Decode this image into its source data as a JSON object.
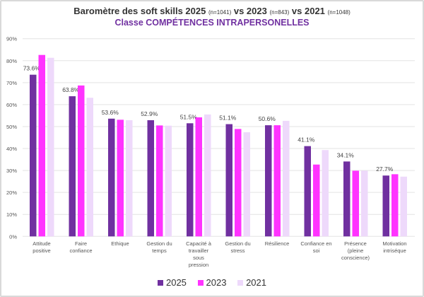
{
  "chart_data": {
    "type": "bar",
    "title_parts": {
      "t1": "Baromètre des soft skills 2025",
      "n1": "(n=1041)",
      "t2": "vs 2023",
      "n2": "(n=843)",
      "t3": "vs 2021",
      "n3": "(n=1048)"
    },
    "subtitle": "Classe COMPÉTENCES INTRAPERSONELLES",
    "categories": [
      [
        "Attitude",
        "positive"
      ],
      [
        "Faire",
        "confiance"
      ],
      [
        "Ethique"
      ],
      [
        "Gestion du",
        "temps"
      ],
      [
        "Capacité à",
        "travailler",
        "sous",
        "pression"
      ],
      [
        "Gestion du",
        "stress"
      ],
      [
        "Résilience"
      ],
      [
        "Confiance en",
        "soi"
      ],
      [
        "Présence",
        "(pleine",
        "conscience)"
      ],
      [
        "Motivation",
        "intriséque"
      ]
    ],
    "series": [
      {
        "name": "2025",
        "color": "#7030a0",
        "values": [
          73.6,
          63.8,
          53.6,
          52.9,
          51.5,
          51.1,
          50.6,
          41.1,
          34.1,
          27.7
        ],
        "labels": [
          "73.6%",
          "63.8%",
          "53.6%",
          "52.9%",
          "51.5%",
          "51.1%",
          "50.6%",
          "41.1%",
          "34.1%",
          "27.7%"
        ]
      },
      {
        "name": "2023",
        "color": "#ff33ff",
        "values": [
          82.6,
          68.7,
          53.1,
          50.5,
          54.2,
          48.9,
          50.6,
          32.7,
          29.9,
          28.3
        ]
      },
      {
        "name": "2021",
        "color": "#eed9fb",
        "values": [
          81.3,
          63.1,
          52.9,
          50.4,
          55.5,
          47.4,
          52.6,
          39.3,
          29.9,
          27.2
        ]
      }
    ],
    "yticks": [
      "0%",
      "10%",
      "20%",
      "30%",
      "40%",
      "50%",
      "60%",
      "70%",
      "80%",
      "90%"
    ],
    "ylim": [
      0,
      90
    ],
    "grid": true,
    "legend": "bottom"
  }
}
